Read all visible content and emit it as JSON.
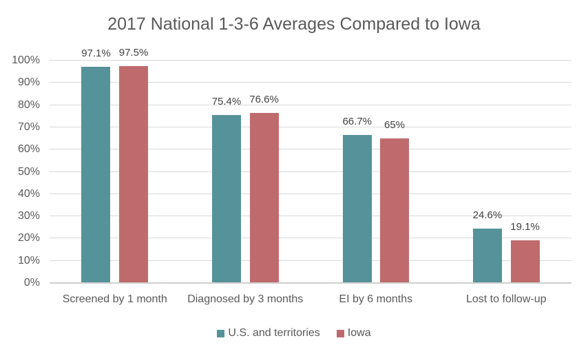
{
  "chart_data": {
    "type": "bar",
    "title": "2017 National 1-3-6 Averages Compared to Iowa",
    "categories": [
      "Screened by 1 month",
      "Diagnosed by 3 months",
      "EI by 6 months",
      "Lost to follow-up"
    ],
    "series": [
      {
        "name": "U.S. and territories",
        "color": "#55929A",
        "values": [
          97.1,
          75.4,
          66.7,
          24.6
        ],
        "labels": [
          "97.1%",
          "75.4%",
          "66.7%",
          "24.6%"
        ]
      },
      {
        "name": "Iowa",
        "color": "#BF6B6D",
        "values": [
          97.5,
          76.6,
          65,
          19.1
        ],
        "labels": [
          "97.5%",
          "76.6%",
          "65%",
          "19.1%"
        ]
      }
    ],
    "ylim": [
      0,
      100
    ],
    "ytick_step": 10,
    "ytick_labels": [
      "0%",
      "10%",
      "20%",
      "30%",
      "40%",
      "50%",
      "60%",
      "70%",
      "80%",
      "90%",
      "100%"
    ],
    "grid": true,
    "legend_position": "bottom"
  },
  "style": {
    "title_color": "#595959",
    "axis_text_color": "#595959",
    "data_label_color": "#404040",
    "gridline_color": "#D9D9D9",
    "axis_line_color": "#CFCFCF",
    "background": "#FFFFFF"
  }
}
